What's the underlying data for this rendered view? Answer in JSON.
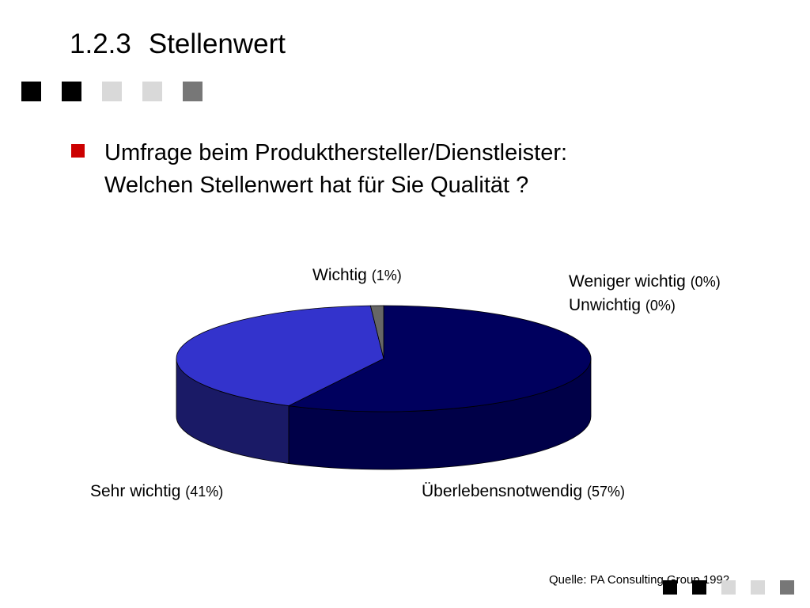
{
  "slide": {
    "section_number": "1.2.3",
    "title": "Stellenwert",
    "bullet_line1": "Umfrage beim Produkthersteller/Dienstleister:",
    "bullet_line2": "Welchen Stellenwert hat für Sie Qualität ?",
    "source": "Quelle: PA Consulting Group 1992",
    "bullet_color": "#cc0000",
    "deco_colors": [
      "#000000",
      "#000000",
      "#d9d9d9",
      "#d9d9d9",
      "#777777"
    ]
  },
  "chart_data": {
    "type": "pie",
    "style": "3d",
    "title": "",
    "slices": [
      {
        "name": "Überlebensnotwendig",
        "pct_label": "(57%)",
        "value": 57,
        "color": "#00005e",
        "side_color": "#000048"
      },
      {
        "name": "Sehr wichtig",
        "pct_label": "(41%)",
        "value": 41,
        "color": "#3333cc",
        "side_color": "#1a1a66"
      },
      {
        "name": "Wichtig",
        "pct_label": "(1%)",
        "value": 1,
        "color": "#666666",
        "side_color": "#444444"
      },
      {
        "name": "Weniger wichtig",
        "pct_label": "(0%)",
        "value": 0,
        "color": "#cccccc",
        "side_color": "#999999"
      },
      {
        "name": "Unwichtig",
        "pct_label": "(0%)",
        "value": 0,
        "color": "#ffffff",
        "side_color": "#cccccc"
      }
    ]
  }
}
